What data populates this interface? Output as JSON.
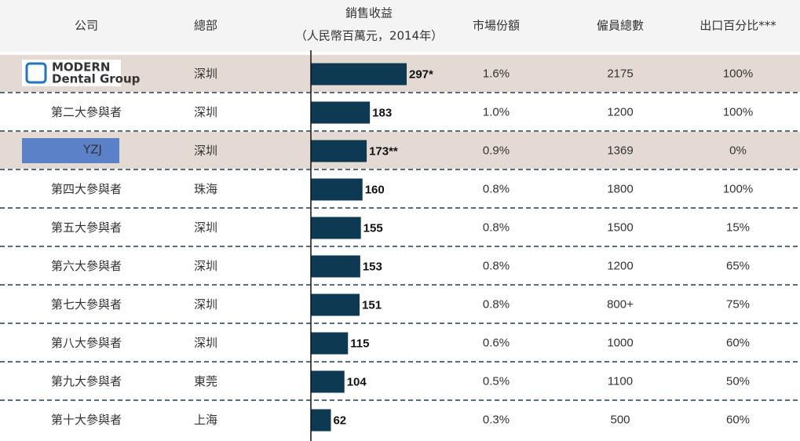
{
  "table": {
    "headers": [
      "公司",
      "總部",
      {
        "title": "銷售收益",
        "subtitle": "（人民幣百萬元，2014年）"
      },
      "市場份額",
      "僱員總數",
      "出口百分比***"
    ],
    "rows": [
      {
        "logo": [
          "MODERN",
          "Dental Group"
        ],
        "hq": "深圳",
        "sales": 297,
        "sales_label": "297*",
        "share": "1.6%",
        "employees": "2175",
        "export": "100%",
        "highlight": true
      },
      {
        "company": "第二大參與者",
        "hq": "深圳",
        "sales": 183,
        "share": "1.0%",
        "employees": "1200",
        "export": "100%"
      },
      {
        "logo": [
          "YZJ"
        ],
        "hq": "深圳",
        "sales": 173,
        "sales_label": "173**",
        "share": "0.9%",
        "employees": "1369",
        "export": "0%",
        "highlight": true
      },
      {
        "company": "第四大參與者",
        "hq": "珠海",
        "sales": 160,
        "share": "0.8%",
        "employees": "1800",
        "export": "100%"
      },
      {
        "company": "第五大參與者",
        "hq": "深圳",
        "sales": 155,
        "share": "0.8%",
        "employees": "1500",
        "export": "15%"
      },
      {
        "company": "第六大參與者",
        "hq": "深圳",
        "sales": 153,
        "share": "0.8%",
        "employees": "1200",
        "export": "65%"
      },
      {
        "company": "第七大參與者",
        "hq": "深圳",
        "sales": 151,
        "share": "0.8%",
        "employees": "800+",
        "export": "75%"
      },
      {
        "company": "第八大參與者",
        "hq": "深圳",
        "sales": 115,
        "share": "0.6%",
        "employees": "1000",
        "export": "60%"
      },
      {
        "company": "第九大參與者",
        "hq": "東莞",
        "sales": 104,
        "share": "0.5%",
        "employees": "1100",
        "export": "50%"
      },
      {
        "company": "第十大參與者",
        "hq": "上海",
        "sales": 62,
        "share": "0.3%",
        "employees": "500",
        "export": "60%"
      }
    ],
    "bar_color": "#0d3a52",
    "highlight_color": "#e4d9d3"
  }
}
